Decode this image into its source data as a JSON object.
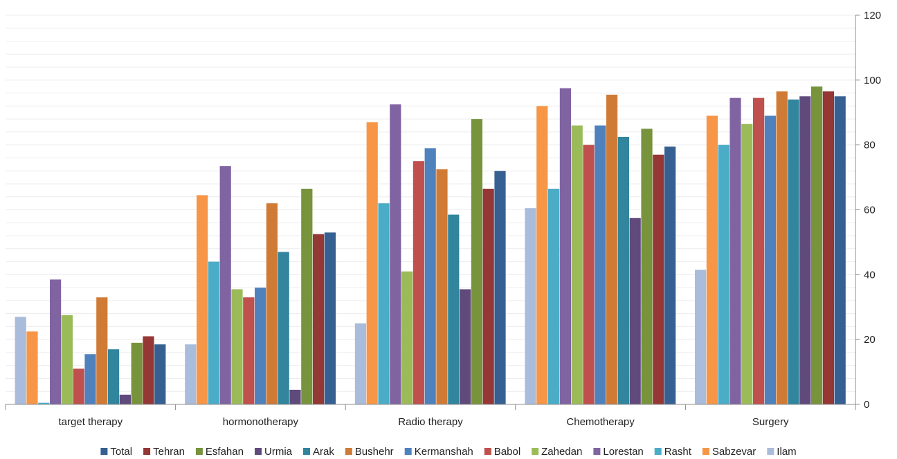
{
  "chart_data": {
    "type": "bar",
    "categories": [
      "target therapy",
      "hormonotherapy",
      "Radio therapy",
      "Chemotherapy",
      "Surgery"
    ],
    "ylim": [
      0,
      120
    ],
    "yticks": [
      0,
      20,
      40,
      60,
      80,
      100,
      120
    ],
    "y_axis_side": "right",
    "grid": true,
    "legend_position": "bottom",
    "series": [
      {
        "name": "Ilam",
        "color": "#A9BCDB",
        "values": [
          27,
          18.5,
          25,
          60.5,
          41.5
        ]
      },
      {
        "name": "Sabzevar",
        "color": "#F79646",
        "values": [
          22.5,
          64.5,
          87,
          92,
          89
        ]
      },
      {
        "name": "Rasht",
        "color": "#4BACC6",
        "values": [
          0.5,
          44,
          62,
          66.5,
          80
        ]
      },
      {
        "name": "Lorestan",
        "color": "#8064A2",
        "values": [
          38.5,
          73.5,
          92.5,
          97.5,
          94.5
        ]
      },
      {
        "name": "Zahedan",
        "color": "#9BBB59",
        "values": [
          27.5,
          35.5,
          41,
          86,
          86.5
        ]
      },
      {
        "name": "Babol",
        "color": "#C0504D",
        "values": [
          11,
          33,
          75,
          80,
          94.5
        ]
      },
      {
        "name": "Kermanshah",
        "color": "#4F81BD",
        "values": [
          15.5,
          36,
          79,
          86,
          89
        ]
      },
      {
        "name": "Bushehr",
        "color": "#D07B35",
        "values": [
          33,
          62,
          72.5,
          95.5,
          96.5
        ]
      },
      {
        "name": "Arak",
        "color": "#31859C",
        "values": [
          17,
          47,
          58.5,
          82.5,
          94
        ]
      },
      {
        "name": "Urmia",
        "color": "#604A7B",
        "values": [
          3,
          4.5,
          35.5,
          57.5,
          95
        ]
      },
      {
        "name": "Esfahan",
        "color": "#77933C",
        "values": [
          19,
          66.5,
          88,
          85,
          98
        ]
      },
      {
        "name": "Tehran",
        "color": "#953735",
        "values": [
          21,
          52.5,
          66.5,
          77,
          96.5
        ]
      },
      {
        "name": "Total",
        "color": "#366092",
        "values": [
          18.5,
          53,
          72,
          79.5,
          95
        ]
      }
    ],
    "legend_order": [
      "Total",
      "Tehran",
      "Esfahan",
      "Urmia",
      "Arak",
      "Bushehr",
      "Kermanshah",
      "Babol",
      "Zahedan",
      "Lorestan",
      "Rasht",
      "Sabzevar",
      "Ilam"
    ]
  }
}
